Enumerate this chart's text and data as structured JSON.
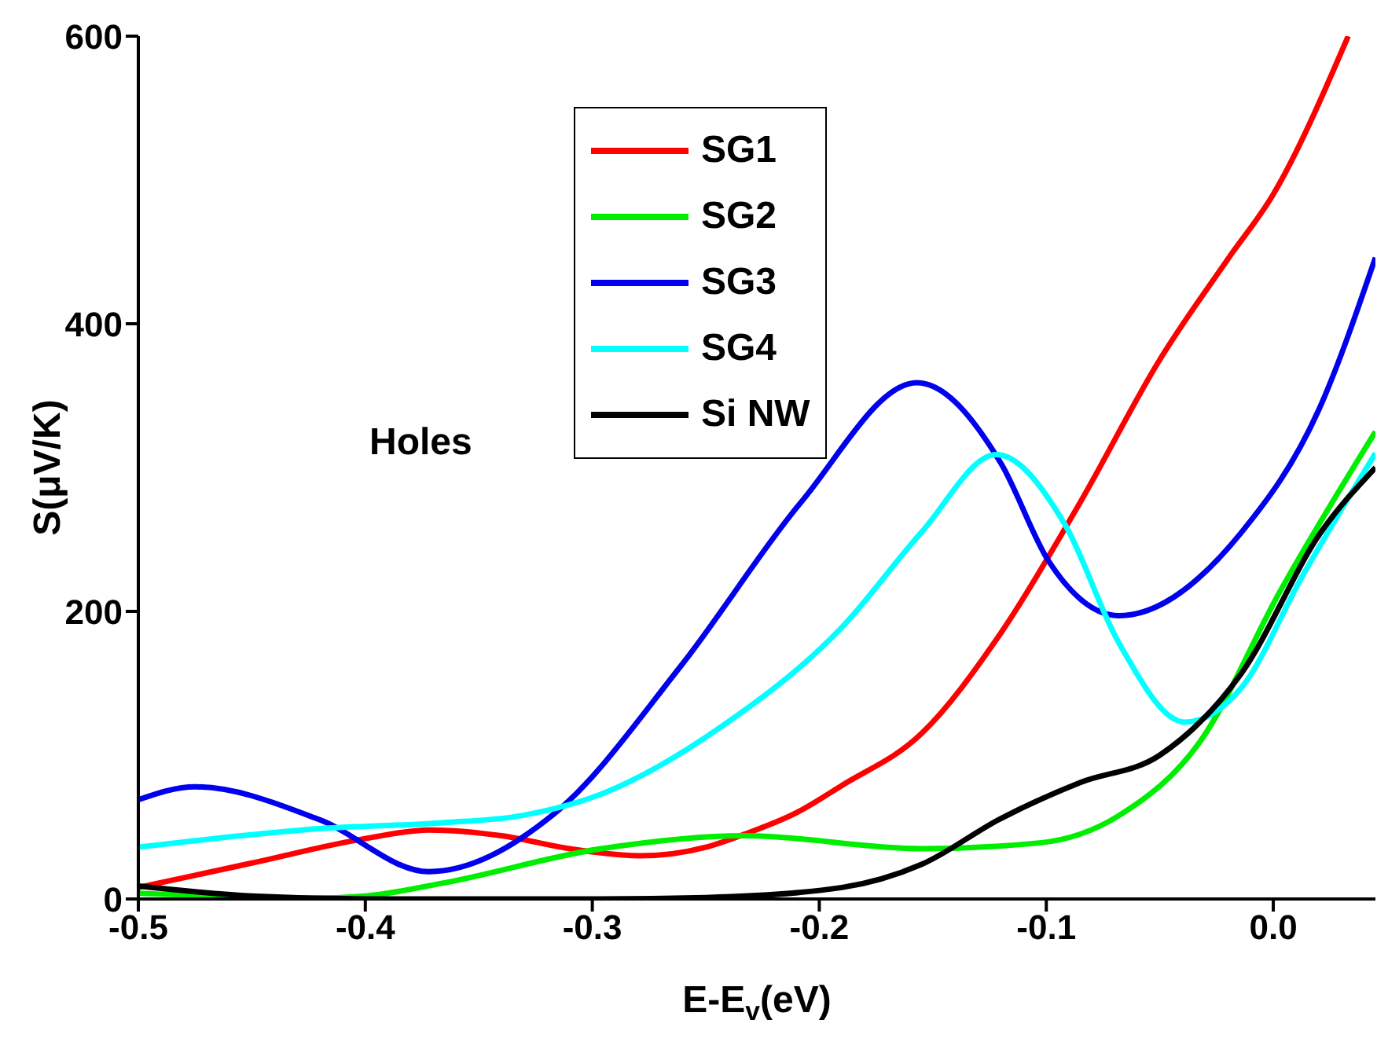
{
  "chart_data": {
    "type": "line",
    "xlabel": "E-E$_{v}$(eV)",
    "ylabel": "S(μV/K)",
    "annotations": [
      "Holes"
    ],
    "xlim": [
      -0.5,
      0.045
    ],
    "xticks": [
      {
        "value": -0.5,
        "label": "-0.5"
      },
      {
        "value": -0.4,
        "label": "-0.4"
      },
      {
        "value": -0.3,
        "label": "-0.3"
      },
      {
        "value": -0.2,
        "label": "-0.2"
      },
      {
        "value": -0.1,
        "label": "-0.1"
      },
      {
        "value": 0,
        "label": "0.0"
      }
    ],
    "ylim": [
      0,
      600
    ],
    "yticks": [
      0,
      200,
      400,
      600
    ],
    "grid": false,
    "legend": "top left",
    "marker": "none",
    "line_style": "solid",
    "series": [
      {
        "name": "SG1",
        "color": "#ff0000",
        "x": [
          -0.5,
          -0.45,
          -0.4,
          -0.372,
          -0.34,
          -0.31,
          -0.279,
          -0.25,
          -0.233,
          -0.21,
          -0.19,
          -0.155,
          -0.12,
          -0.085,
          -0.05,
          -0.02,
          0,
          0.033
        ],
        "values": [
          8,
          25,
          42,
          48,
          44,
          35,
          30,
          36,
          45,
          60,
          79,
          115,
          185,
          276,
          375,
          445,
          490,
          600
        ]
      },
      {
        "name": "SG2",
        "color": "#00ee00",
        "x": [
          -0.5,
          -0.45,
          -0.43,
          -0.4,
          -0.366,
          -0.296,
          -0.233,
          -0.155,
          -0.103,
          -0.068,
          -0.032,
          0.003,
          0.045
        ],
        "values": [
          4,
          1,
          0,
          2,
          11,
          35,
          44,
          35,
          39,
          58,
          110,
          214,
          325
        ]
      },
      {
        "name": "SG3",
        "color": "#0000ee",
        "x": [
          -0.5,
          -0.475,
          -0.42,
          -0.372,
          -0.317,
          -0.261,
          -0.208,
          -0.157,
          -0.12,
          -0.099,
          -0.068,
          -0.014,
          0.02,
          0.045
        ],
        "values": [
          69,
          78,
          55,
          19,
          59,
          162,
          276,
          359,
          303,
          235,
          197,
          255,
          340,
          446
        ]
      },
      {
        "name": "SG4",
        "color": "#00ffff",
        "x": [
          -0.5,
          -0.419,
          -0.366,
          -0.331,
          -0.296,
          -0.243,
          -0.19,
          -0.155,
          -0.122,
          -0.092,
          -0.068,
          -0.039,
          -0.014,
          0.013,
          0.045
        ],
        "values": [
          36,
          49,
          53,
          58,
          73,
          120,
          189,
          255,
          309,
          261,
          178,
          123,
          147,
          225,
          310
        ]
      },
      {
        "name": "Si NW",
        "color": "#000000",
        "x": [
          -0.5,
          -0.45,
          -0.4,
          -0.3,
          -0.25,
          -0.19,
          -0.155,
          -0.12,
          -0.085,
          -0.05,
          -0.014,
          0.021,
          0.045
        ],
        "values": [
          9,
          2,
          0,
          0,
          1,
          8,
          24,
          56,
          81,
          100,
          157,
          255,
          300
        ]
      }
    ]
  }
}
